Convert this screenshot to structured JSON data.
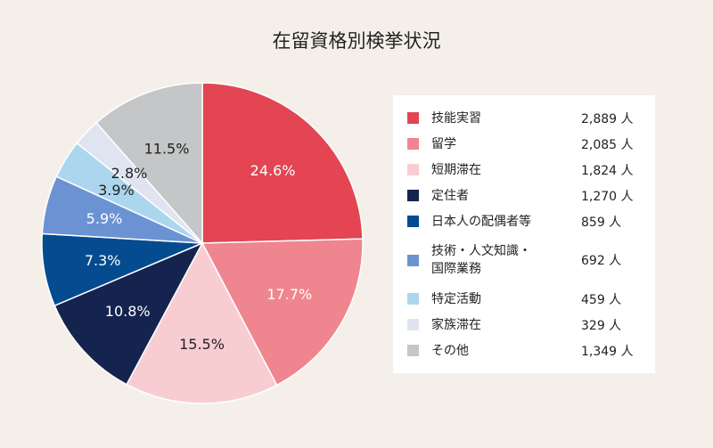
{
  "chart_data": {
    "type": "pie",
    "title": "在留資格別検挙状況",
    "slices": [
      {
        "label": "技能実習",
        "value": 2889,
        "unit": "人",
        "value_text": "2,889 人",
        "percent": 24.6,
        "percent_text": "24.6%",
        "color": "#e34553"
      },
      {
        "label": "留学",
        "value": 2085,
        "unit": "人",
        "value_text": "2,085 人",
        "percent": 17.7,
        "percent_text": "17.7%",
        "color": "#ef858e"
      },
      {
        "label": "短期滞在",
        "value": 1824,
        "unit": "人",
        "value_text": "1,824 人",
        "percent": 15.5,
        "percent_text": "15.5%",
        "color": "#f8cdd2"
      },
      {
        "label": "定住者",
        "value": 1270,
        "unit": "人",
        "value_text": "1,270 人",
        "percent": 10.8,
        "percent_text": "10.8%",
        "color": "#14244f"
      },
      {
        "label": "日本人の配偶者等",
        "value": 859,
        "unit": "人",
        "value_text": "859 人",
        "percent": 7.3,
        "percent_text": "7.3%",
        "color": "#054b8f"
      },
      {
        "label": "技術・人文知識・国際業務",
        "label_lines": [
          "技術・人文知識・",
          "国際業務"
        ],
        "value": 692,
        "unit": "人",
        "value_text": "692 人",
        "percent": 5.9,
        "percent_text": "5.9%",
        "color": "#6b92d3"
      },
      {
        "label": "特定活動",
        "value": 459,
        "unit": "人",
        "value_text": "459 人",
        "percent": 3.9,
        "percent_text": "3.9%",
        "color": "#acd6ee"
      },
      {
        "label": "家族滞在",
        "value": 329,
        "unit": "人",
        "value_text": "329 人",
        "percent": 2.8,
        "percent_text": "2.8%",
        "color": "#dfe4f0"
      },
      {
        "label": "その他",
        "value": 1349,
        "unit": "人",
        "value_text": "1,349 人",
        "percent": 11.5,
        "percent_text": "11.5%",
        "color": "#c4c6c7"
      }
    ],
    "legend_position": "right"
  }
}
